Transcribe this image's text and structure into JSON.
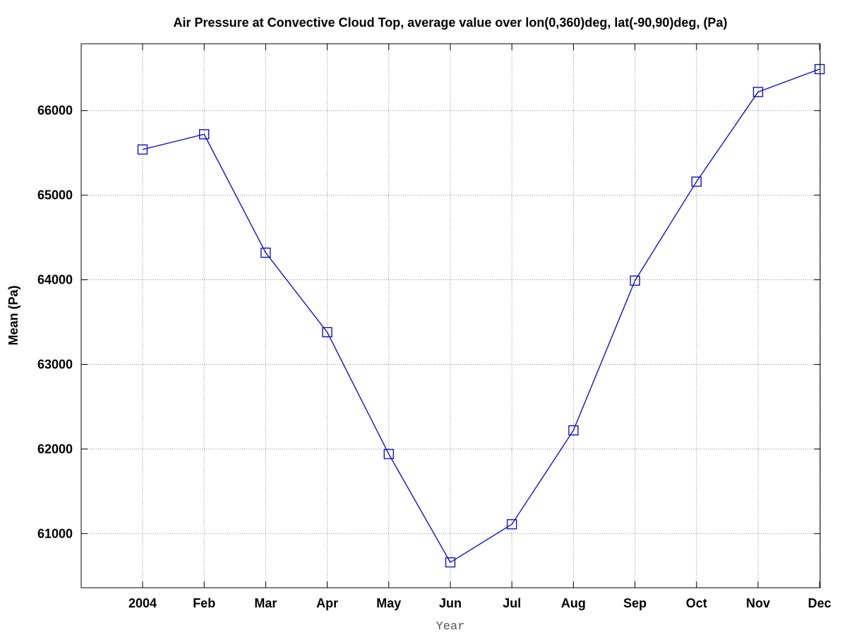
{
  "chart_data": {
    "type": "line",
    "title": "Air Pressure at Convective Cloud Top, average value over lon(0,360)deg, lat(-90,90)deg, (Pa)",
    "xlabel": "Year",
    "ylabel": "Mean (Pa)",
    "categories": [
      "2004",
      "Feb",
      "Mar",
      "Apr",
      "May",
      "Jun",
      "Jul",
      "Aug",
      "Sep",
      "Oct",
      "Nov",
      "Dec"
    ],
    "series": [
      {
        "values": [
          65540,
          65720,
          64320,
          63380,
          61940,
          60660,
          61110,
          62220,
          63990,
          65160,
          66220,
          66490
        ],
        "color": "#0000cc",
        "marker": "square"
      }
    ],
    "ylim": [
      60360,
      66790
    ],
    "yticks": [
      61000,
      62000,
      63000,
      64000,
      65000,
      66000
    ],
    "grid": true
  }
}
